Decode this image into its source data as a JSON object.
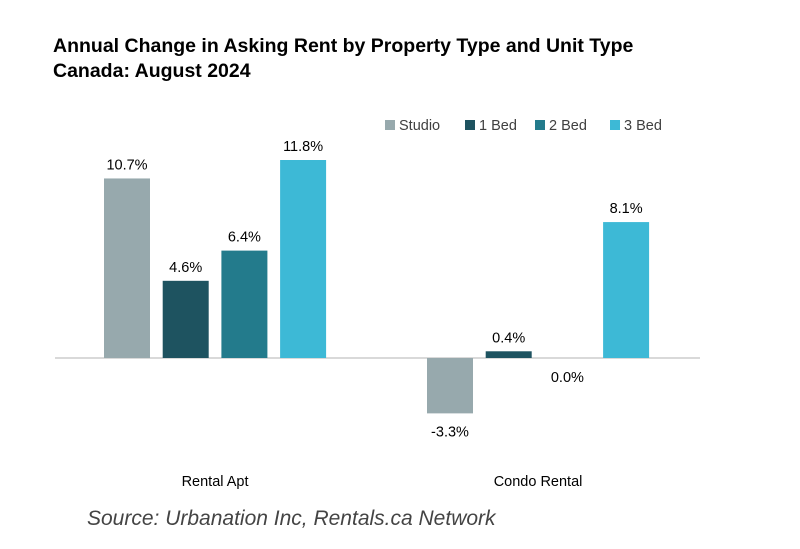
{
  "title_line1": "Annual Change in Asking Rent by Property Type and Unit Type",
  "title_line2": "Canada: August 2024",
  "source": "Source: Urbanation Inc, Rentals.ca Network",
  "chart_data": {
    "type": "bar",
    "categories": [
      "Rental Apt",
      "Condo Rental"
    ],
    "series": [
      {
        "name": "Studio",
        "values": [
          10.7,
          -3.3
        ],
        "labels": [
          "10.7%",
          "-3.3%"
        ],
        "color": "#97a9ad"
      },
      {
        "name": "1 Bed",
        "values": [
          4.6,
          0.4
        ],
        "labels": [
          "4.6%",
          "0.4%"
        ],
        "color": "#1e5360"
      },
      {
        "name": "2 Bed",
        "values": [
          6.4,
          0.0
        ],
        "labels": [
          "6.4%",
          "0.0%"
        ],
        "color": "#237b8c"
      },
      {
        "name": "3 Bed",
        "values": [
          11.8,
          8.1
        ],
        "labels": [
          "11.8%",
          "8.1%"
        ],
        "color": "#3db9d6"
      }
    ],
    "legend_position": "top-right",
    "grid": false,
    "ylim": [
      -3.3,
      11.8
    ]
  }
}
